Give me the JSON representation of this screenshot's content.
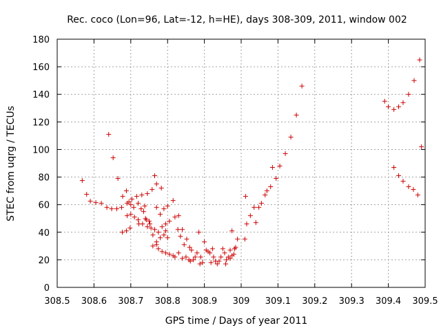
{
  "chart_data": {
    "type": "scatter",
    "title": "Rec. coco (Lon=96, Lat=-12, h=HE), days 308-309, 2011, window 002",
    "xlabel": "GPS time / Days of year 2011",
    "ylabel": "STEC from uqrg / TECUs",
    "xlim": [
      308.5,
      309.5
    ],
    "ylim": [
      0,
      180
    ],
    "xticks": [
      308.5,
      308.6,
      308.7,
      308.8,
      308.9,
      309,
      309.1,
      309.2,
      309.3,
      309.4,
      309.5
    ],
    "xtick_labels": [
      "308.5",
      "308.6",
      "308.7",
      "308.8",
      "308.9",
      "309",
      "309.1",
      "309.2",
      "309.3",
      "309.4",
      "309.5"
    ],
    "yticks": [
      0,
      20,
      40,
      60,
      80,
      100,
      120,
      140,
      160,
      180
    ],
    "ytick_labels": [
      "0",
      "20",
      "40",
      "60",
      "80",
      "100",
      "120",
      "140",
      "160",
      "180"
    ],
    "grid": true,
    "marker": "+",
    "color": "#cc0000",
    "series": [
      {
        "name": "STEC",
        "points": [
          [
            308.568,
            77.5
          ],
          [
            308.58,
            67.5
          ],
          [
            308.59,
            62.5
          ],
          [
            308.605,
            61.5
          ],
          [
            308.62,
            61
          ],
          [
            308.635,
            58
          ],
          [
            308.648,
            57
          ],
          [
            308.662,
            57
          ],
          [
            308.675,
            58
          ],
          [
            308.69,
            61
          ],
          [
            308.703,
            64
          ],
          [
            308.716,
            66
          ],
          [
            308.73,
            67
          ],
          [
            308.745,
            68
          ],
          [
            308.758,
            71
          ],
          [
            308.77,
            75
          ],
          [
            308.783,
            72
          ],
          [
            308.64,
            111
          ],
          [
            308.652,
            94
          ],
          [
            308.665,
            79
          ],
          [
            308.765,
            81
          ],
          [
            308.678,
            66
          ],
          [
            308.688,
            70
          ],
          [
            308.695,
            62
          ],
          [
            308.7,
            60
          ],
          [
            308.708,
            58
          ],
          [
            308.72,
            61
          ],
          [
            308.728,
            57
          ],
          [
            308.738,
            59
          ],
          [
            308.78,
            53
          ],
          [
            308.77,
            58
          ],
          [
            308.79,
            57
          ],
          [
            308.8,
            59
          ],
          [
            308.815,
            63
          ],
          [
            308.83,
            52
          ],
          [
            308.82,
            51
          ],
          [
            308.677,
            40
          ],
          [
            308.688,
            41
          ],
          [
            308.698,
            43
          ],
          [
            308.69,
            52
          ],
          [
            308.7,
            53
          ],
          [
            308.71,
            51
          ],
          [
            308.72,
            49
          ],
          [
            308.722,
            46
          ],
          [
            308.732,
            46
          ],
          [
            308.742,
            49
          ],
          [
            308.752,
            46
          ],
          [
            308.745,
            44
          ],
          [
            308.755,
            43
          ],
          [
            308.765,
            42
          ],
          [
            308.775,
            40
          ],
          [
            308.785,
            44
          ],
          [
            308.795,
            46
          ],
          [
            308.805,
            48
          ],
          [
            308.8,
            36
          ],
          [
            308.79,
            38
          ],
          [
            308.78,
            36
          ],
          [
            308.77,
            33
          ],
          [
            308.76,
            30
          ],
          [
            308.77,
            31
          ],
          [
            308.775,
            28
          ],
          [
            308.735,
            55
          ],
          [
            308.74,
            50
          ],
          [
            308.75,
            48
          ],
          [
            308.76,
            38
          ],
          [
            308.795,
            41
          ],
          [
            308.785,
            26
          ],
          [
            308.795,
            25
          ],
          [
            308.805,
            24
          ],
          [
            308.815,
            23
          ],
          [
            308.82,
            22
          ],
          [
            308.828,
            42
          ],
          [
            308.835,
            37
          ],
          [
            308.84,
            42
          ],
          [
            308.845,
            31
          ],
          [
            308.852,
            35
          ],
          [
            308.86,
            29
          ],
          [
            308.865,
            27
          ],
          [
            308.83,
            25
          ],
          [
            308.84,
            21
          ],
          [
            308.85,
            22
          ],
          [
            308.858,
            20
          ],
          [
            308.862,
            19
          ],
          [
            308.87,
            20
          ],
          [
            308.875,
            22
          ],
          [
            308.88,
            25
          ],
          [
            308.888,
            17
          ],
          [
            308.885,
            40
          ],
          [
            308.89,
            22
          ],
          [
            308.895,
            18
          ],
          [
            308.9,
            33
          ],
          [
            308.905,
            27
          ],
          [
            308.91,
            26
          ],
          [
            308.915,
            25
          ],
          [
            308.918,
            18
          ],
          [
            308.922,
            28
          ],
          [
            308.925,
            22
          ],
          [
            308.93,
            19
          ],
          [
            308.935,
            17
          ],
          [
            308.94,
            19
          ],
          [
            308.945,
            22
          ],
          [
            308.95,
            28
          ],
          [
            308.955,
            25
          ],
          [
            308.958,
            17
          ],
          [
            308.96,
            20
          ],
          [
            308.965,
            22
          ],
          [
            308.97,
            21
          ],
          [
            308.975,
            41
          ],
          [
            308.98,
            24
          ],
          [
            308.982,
            28
          ],
          [
            308.985,
            29
          ],
          [
            308.99,
            35
          ],
          [
            308.975,
            23
          ],
          [
            308.97,
            27
          ],
          [
            309.012,
            66
          ],
          [
            309.01,
            35
          ],
          [
            309.015,
            46
          ],
          [
            309.025,
            52
          ],
          [
            309.035,
            58
          ],
          [
            309.04,
            47
          ],
          [
            309.048,
            58
          ],
          [
            309.055,
            61
          ],
          [
            309.065,
            67
          ],
          [
            309.07,
            70
          ],
          [
            309.08,
            73
          ],
          [
            309.085,
            87
          ],
          [
            309.095,
            79
          ],
          [
            309.105,
            88
          ],
          [
            309.12,
            97
          ],
          [
            309.135,
            109
          ],
          [
            309.15,
            125
          ],
          [
            309.165,
            146
          ],
          [
            309.39,
            135
          ],
          [
            309.4,
            131
          ],
          [
            309.415,
            129
          ],
          [
            309.428,
            131
          ],
          [
            309.44,
            134
          ],
          [
            309.455,
            140
          ],
          [
            309.47,
            150
          ],
          [
            309.485,
            165
          ],
          [
            309.49,
            102
          ],
          [
            309.415,
            87
          ],
          [
            309.428,
            81
          ],
          [
            309.44,
            77
          ],
          [
            309.455,
            73
          ],
          [
            309.468,
            71
          ],
          [
            309.48,
            67
          ]
        ]
      }
    ]
  }
}
